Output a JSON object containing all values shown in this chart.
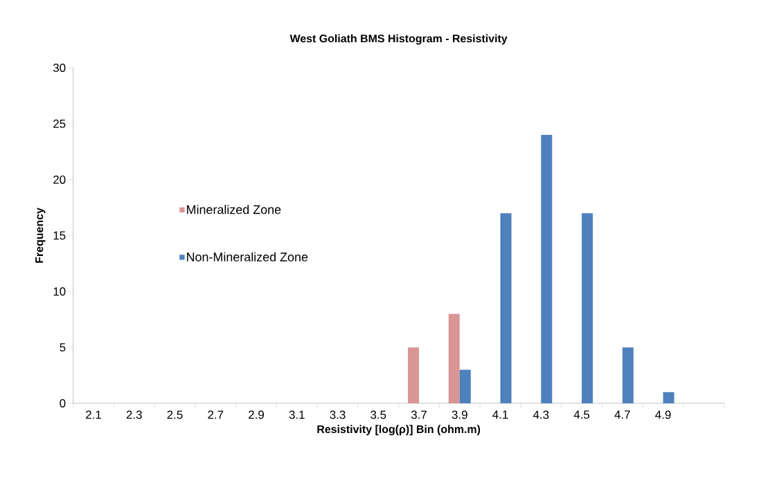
{
  "chart_data": {
    "type": "bar",
    "title": "West Goliath BMS Histogram - Resistivity",
    "xlabel": "Resistivity [log(ρ)] Bin (ohm.m)",
    "ylabel": "Frequency",
    "categories": [
      "2.1",
      "2.3",
      "2.5",
      "2.7",
      "2.9",
      "3.1",
      "3.3",
      "3.5",
      "3.7",
      "3.9",
      "4.1",
      "4.3",
      "4.5",
      "4.7",
      "4.9",
      null
    ],
    "series": [
      {
        "name": "Mineralized Zone",
        "color": "#d99694",
        "values": [
          0,
          0,
          0,
          0,
          0,
          0,
          0,
          0,
          5,
          8,
          0,
          0,
          0,
          0,
          0,
          0
        ]
      },
      {
        "name": "Non-Mineralized Zone",
        "color": "#4f81bd",
        "values": [
          0,
          0,
          0,
          0,
          0,
          0,
          0,
          0,
          0,
          3,
          17,
          24,
          17,
          5,
          1,
          0
        ]
      }
    ],
    "ylim": [
      0,
      30
    ],
    "yticks": [
      0,
      5,
      10,
      15,
      20,
      25,
      30
    ],
    "legend": "left"
  }
}
